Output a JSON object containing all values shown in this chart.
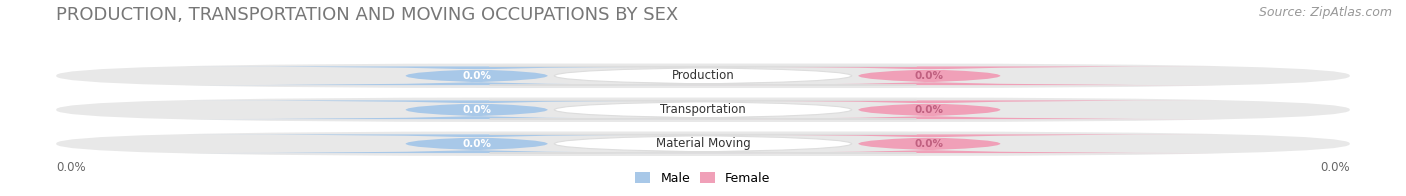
{
  "title": "PRODUCTION, TRANSPORTATION AND MOVING OCCUPATIONS BY SEX",
  "source": "Source: ZipAtlas.com",
  "categories": [
    "Production",
    "Transportation",
    "Material Moving"
  ],
  "male_values": [
    0.0,
    0.0,
    0.0
  ],
  "female_values": [
    0.0,
    0.0,
    0.0
  ],
  "male_color": "#a8c8e8",
  "female_color": "#f0a0b8",
  "male_label": "Male",
  "female_label": "Female",
  "row_bg_color": "#e8e8e8",
  "x_left_label": "0.0%",
  "x_right_label": "0.0%",
  "title_fontsize": 13,
  "source_fontsize": 9,
  "figsize": [
    14.06,
    1.96
  ],
  "dpi": 100
}
